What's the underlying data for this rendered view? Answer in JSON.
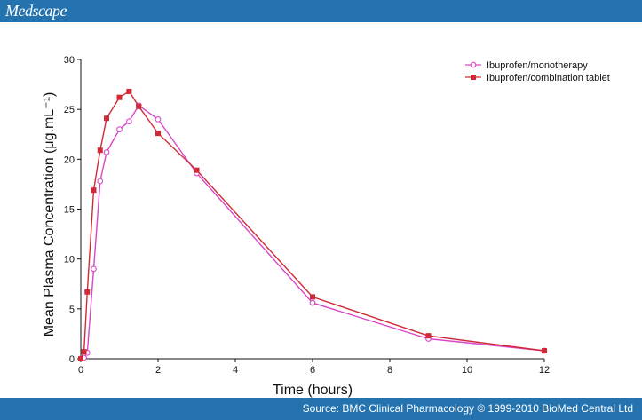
{
  "header": {
    "logo": "Medscape"
  },
  "footer": {
    "source": "Source: BMC Clinical Pharmacology © 1999-2010 BioMed Central Ltd"
  },
  "colors": {
    "header_bg": "#2473ae",
    "mono": "#d946c8",
    "combo": "#d02a38"
  },
  "chart_data": {
    "type": "line",
    "title": "",
    "xlabel": "Time (hours)",
    "ylabel": "Mean Plasma Concentration (μg.mL⁻¹)",
    "xlim": [
      0,
      12
    ],
    "ylim": [
      0,
      30
    ],
    "xticks": [
      "0",
      "2",
      "4",
      "6",
      "8",
      "10",
      "12"
    ],
    "yticks": [
      "0",
      "5",
      "10",
      "15",
      "20",
      "25",
      "30"
    ],
    "grid": false,
    "legend_position": "top-right",
    "series": [
      {
        "name": "Ibuprofen/monotherapy",
        "marker": "open-circle",
        "color": "#d946c8",
        "x": [
          0,
          0.083,
          0.167,
          0.333,
          0.5,
          0.667,
          1.0,
          1.25,
          1.5,
          2.0,
          3.0,
          6.0,
          9.0,
          12.0
        ],
        "y": [
          0,
          0.1,
          0.6,
          9.0,
          17.8,
          20.7,
          23.0,
          23.8,
          25.4,
          24.0,
          18.6,
          5.6,
          2.0,
          0.8
        ]
      },
      {
        "name": "Ibuprofen/combination tablet",
        "marker": "filled-square",
        "color": "#d02a38",
        "x": [
          0,
          0.083,
          0.167,
          0.333,
          0.5,
          0.667,
          1.0,
          1.25,
          1.5,
          2.0,
          3.0,
          6.0,
          9.0,
          12.0
        ],
        "y": [
          0,
          0.7,
          6.7,
          16.9,
          20.9,
          24.1,
          26.2,
          26.8,
          25.3,
          22.6,
          18.9,
          6.2,
          2.3,
          0.8
        ]
      }
    ]
  }
}
